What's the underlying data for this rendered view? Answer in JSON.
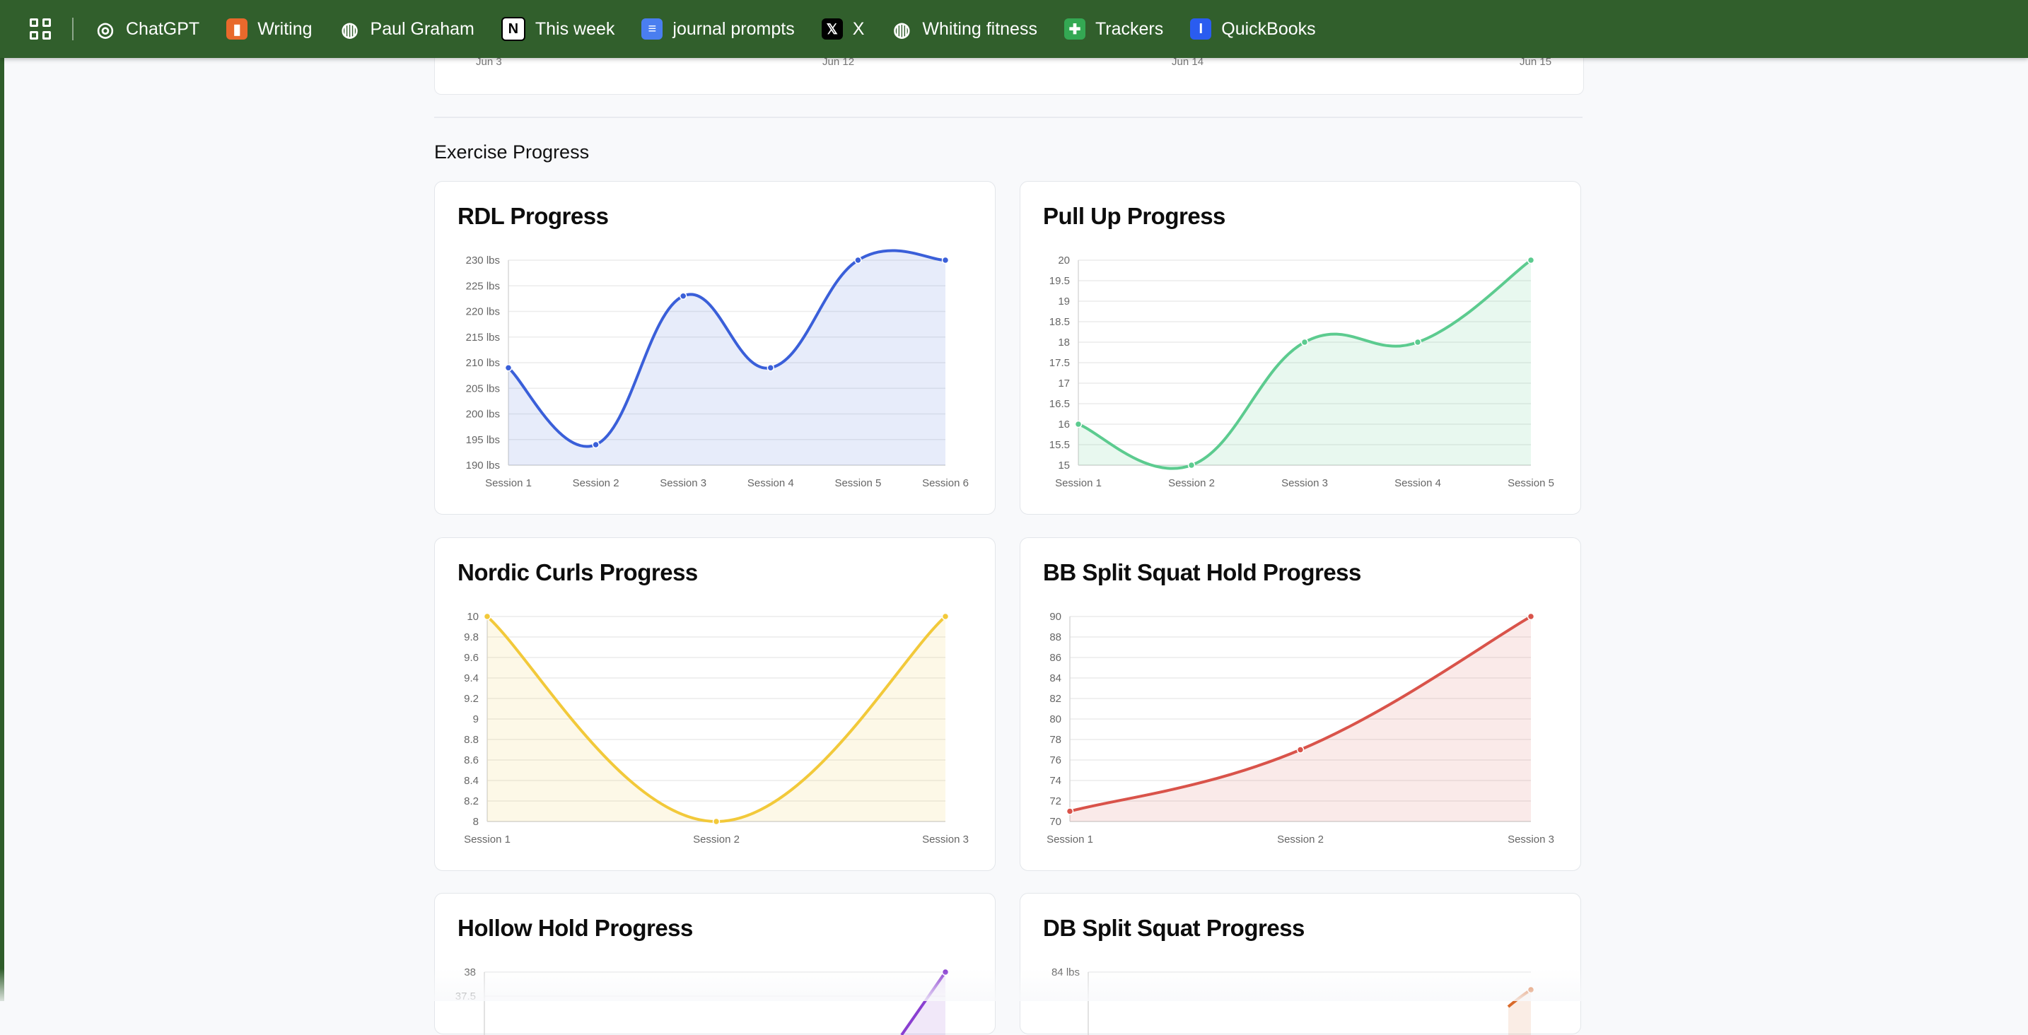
{
  "bookmarks": [
    {
      "label": "ChatGPT",
      "icon": "chatgpt-icon",
      "color": "#ffffff"
    },
    {
      "label": "Writing",
      "icon": "bookmark-icon",
      "color": "#e8692c"
    },
    {
      "label": "Paul Graham",
      "icon": "globe-icon",
      "color": "#ffffff"
    },
    {
      "label": "This week",
      "icon": "notion-icon",
      "color": "#ffffff"
    },
    {
      "label": "journal prompts",
      "icon": "docs-icon",
      "color": "#4a7ef0"
    },
    {
      "label": "X",
      "icon": "x-icon",
      "color": "#000000"
    },
    {
      "label": "Whiting fitness",
      "icon": "globe-icon",
      "color": "#ffffff"
    },
    {
      "label": "Trackers",
      "icon": "sheets-icon",
      "color": "#34a853"
    },
    {
      "label": "QuickBooks",
      "icon": "quickbooks-icon",
      "color": "#2a5cf0"
    }
  ],
  "top_chart": {
    "x_ticks": [
      "Jun 3",
      "Jun 12",
      "Jun 14",
      "Jun 15"
    ]
  },
  "section_title": "Exercise Progress",
  "chart_data": [
    {
      "type": "line",
      "title": "RDL Progress",
      "categories": [
        "Session 1",
        "Session 2",
        "Session 3",
        "Session 4",
        "Session 5",
        "Session 6"
      ],
      "values": [
        209,
        194,
        223,
        209,
        230,
        230
      ],
      "ylim": [
        190,
        230
      ],
      "y_ticks": [
        190,
        195,
        200,
        205,
        210,
        215,
        220,
        225,
        230
      ],
      "y_unit": " lbs",
      "color": "#3a5fd9",
      "fill": "rgba(58,95,217,0.12)"
    },
    {
      "type": "line",
      "title": "Pull Up Progress",
      "categories": [
        "Session 1",
        "Session 2",
        "Session 3",
        "Session 4",
        "Session 5"
      ],
      "values": [
        16,
        15,
        18,
        18,
        20
      ],
      "ylim": [
        15,
        20
      ],
      "y_ticks": [
        15,
        15.5,
        16,
        16.5,
        17,
        17.5,
        18,
        18.5,
        19,
        19.5,
        20
      ],
      "y_unit": "",
      "color": "#5ccb8f",
      "fill": "rgba(92,203,143,0.14)"
    },
    {
      "type": "line",
      "title": "Nordic Curls Progress",
      "categories": [
        "Session 1",
        "Session 2",
        "Session 3"
      ],
      "values": [
        10,
        8,
        10
      ],
      "ylim": [
        8,
        10
      ],
      "y_ticks": [
        8,
        8.2,
        8.4,
        8.6,
        8.8,
        9,
        9.2,
        9.4,
        9.6,
        9.8,
        10
      ],
      "y_unit": "",
      "color": "#f2c93a",
      "fill": "rgba(242,201,58,0.12)"
    },
    {
      "type": "line",
      "title": "BB Split Squat Hold Progress",
      "categories": [
        "Session 1",
        "Session 2",
        "Session 3"
      ],
      "values": [
        71,
        77,
        90
      ],
      "ylim": [
        70,
        90
      ],
      "y_ticks": [
        70,
        72,
        74,
        76,
        78,
        80,
        82,
        84,
        86,
        88,
        90
      ],
      "y_unit": "",
      "color": "#d9534a",
      "fill": "rgba(217,83,74,0.12)"
    },
    {
      "type": "line",
      "title": "Hollow Hold Progress",
      "y_ticks": [
        37.5,
        38
      ],
      "ylim": [
        37.5,
        38
      ],
      "y_unit": "",
      "color": "#8a3fd1",
      "fill": "rgba(138,63,209,0.12)"
    },
    {
      "type": "line",
      "title": "DB Split Squat Progress",
      "y_ticks": [
        84
      ],
      "y_unit": " lbs",
      "color": "#d96a2a",
      "fill": "rgba(217,106,42,0.12)"
    }
  ]
}
